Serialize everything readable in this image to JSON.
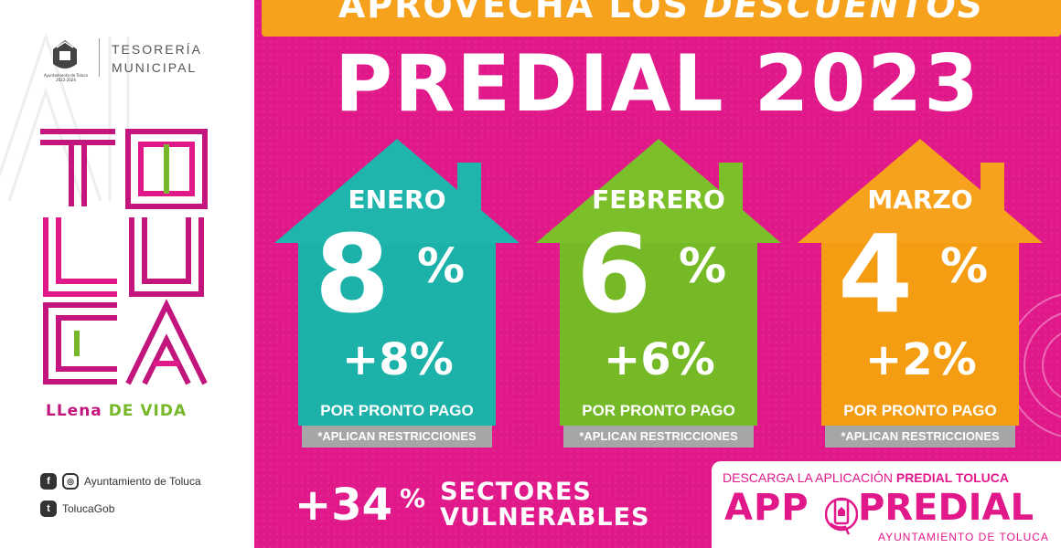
{
  "left": {
    "seal_caption": "Ayuntamiento de Toluca 2022-2024",
    "tesoreria": [
      "TESORERÍA",
      "MUNICIPAL"
    ],
    "logo_letters": [
      "T",
      "O",
      "L",
      "U",
      "C",
      "A"
    ],
    "tagline": {
      "part1": "LLena",
      "part2": "DE VIDA"
    },
    "social": [
      {
        "icons": [
          "f",
          "◎"
        ],
        "label": "Ayuntamiento de Toluca"
      },
      {
        "icons": [
          "t"
        ],
        "label": "TolucaGob"
      }
    ]
  },
  "banner": {
    "text_plain": "APROVECHA LOS",
    "text_emphasis": "DESCUENTOS"
  },
  "title": "PREDIAL 2023",
  "houses": [
    {
      "month": "ENERO",
      "discount": "8",
      "pct": "%",
      "extra": "+8%",
      "pronto": "POR PRONTO PAGO",
      "restr": "*APLICAN RESTRICCIONES",
      "color": "#1fb5ad"
    },
    {
      "month": "FEBRERO",
      "discount": "6",
      "pct": "%",
      "extra": "+6%",
      "pronto": "POR PRONTO PAGO",
      "restr": "*APLICAN RESTRICCIONES",
      "color": "#7bbf2a"
    },
    {
      "month": "MARZO",
      "discount": "4",
      "pct": "%",
      "extra": "+2%",
      "pronto": "POR PRONTO PAGO",
      "restr": "*APLICAN RESTRICCIONES",
      "color": "#f7a21c"
    }
  ],
  "sectores": {
    "num": "+34",
    "pct": "%",
    "line1": "SECTORES",
    "line2": "VULNERABLES"
  },
  "app": {
    "line1_plain": "DESCARGA LA APLICACIÓN",
    "line1_bold": "PREDIAL TOLUCA",
    "app_word": "APP",
    "predial_word": "PREDIAL",
    "sub": "AYUNTAMIENTO DE TOLUCA"
  },
  "colors": {
    "magenta": "#e0188a",
    "orange": "#f7a21c",
    "teal": "#1fb5ad",
    "green": "#7bbf2a",
    "gray": "#a6a6a6"
  }
}
